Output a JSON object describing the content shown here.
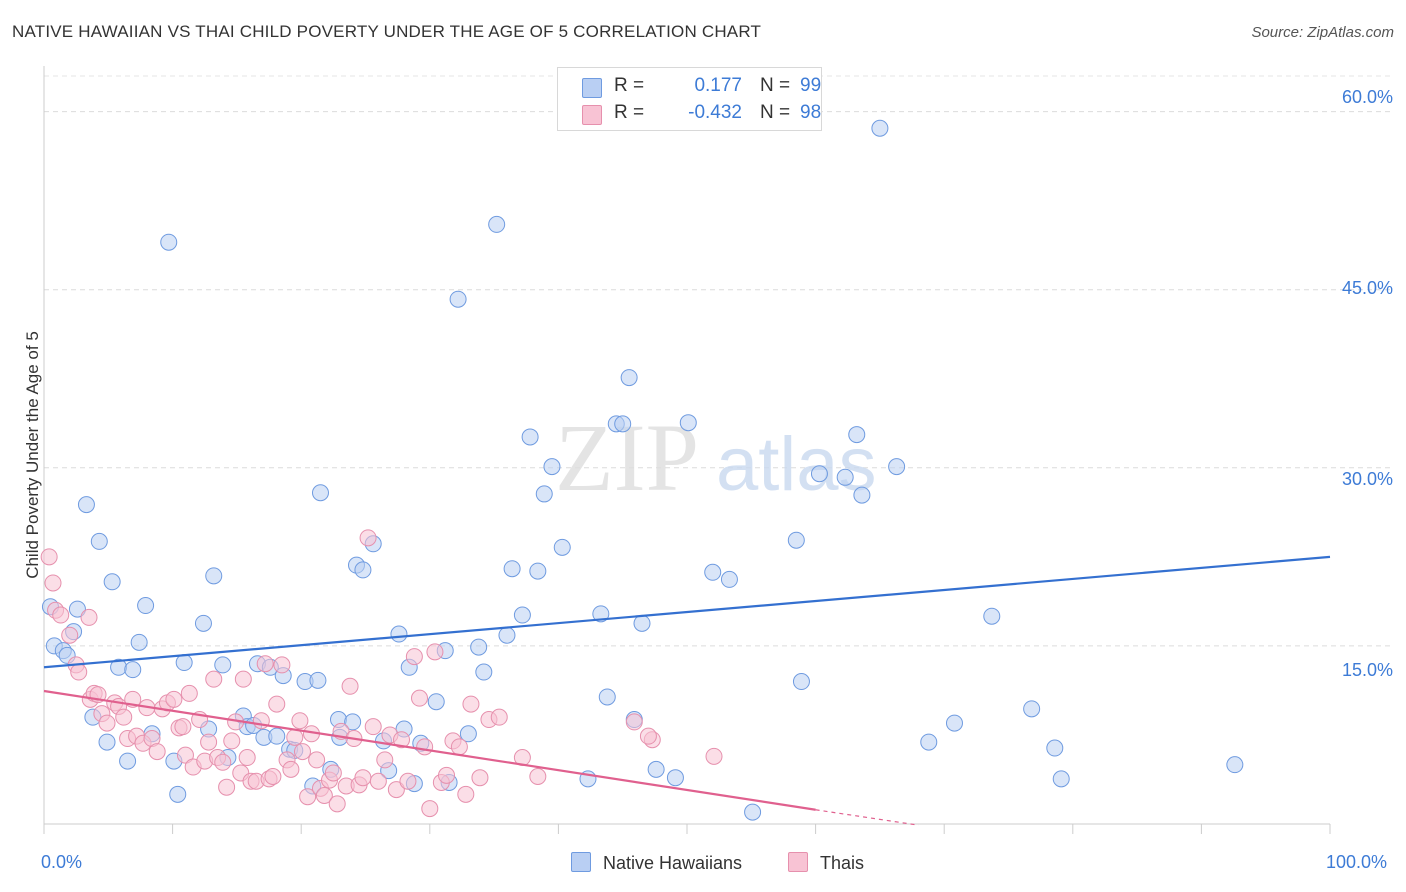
{
  "header": {
    "title": "NATIVE HAWAIIAN VS THAI CHILD POVERTY UNDER THE AGE OF 5 CORRELATION CHART",
    "source": "Source: ZipAtlas.com"
  },
  "watermark": {
    "zip": "ZIP",
    "atlas": "atlas"
  },
  "legend": {
    "rows": [
      {
        "r_label": "R =",
        "r_value": "0.177",
        "n_label": "N =",
        "n_value": "99"
      },
      {
        "r_label": "R =",
        "r_value": "-0.432",
        "n_label": "N =",
        "n_value": "98"
      }
    ]
  },
  "bottom_legend": {
    "series1": "Native Hawaiians",
    "series2": "Thais"
  },
  "colors": {
    "blue_fill": "#b9cff3",
    "blue_stroke": "#6f9be0",
    "blue_line": "#3470d0",
    "pink_fill": "#f8c3d4",
    "pink_stroke": "#e690ad",
    "pink_line": "#e0608e",
    "tick_text": "#3d7bd6"
  },
  "chart_data": {
    "type": "scatter",
    "title": "NATIVE HAWAIIAN VS THAI CHILD POVERTY UNDER THE AGE OF 5 CORRELATION CHART",
    "xlabel": "",
    "ylabel": "Child Poverty Under the Age of 5",
    "xlim": [
      0,
      100
    ],
    "ylim": [
      0,
      63
    ],
    "y_ticks": [
      15,
      30,
      45,
      60
    ],
    "y_tick_labels": [
      "15.0%",
      "30.0%",
      "45.0%",
      "60.0%"
    ],
    "x_tick_labels": [
      "0.0%",
      "100.0%"
    ],
    "series": [
      {
        "name": "Native Hawaiians",
        "r": 0.177,
        "n": 99,
        "trend": {
          "x": [
            0,
            100
          ],
          "y": [
            13.2,
            22.5
          ]
        },
        "points": [
          [
            0.5,
            18.3
          ],
          [
            0.8,
            15.0
          ],
          [
            1.5,
            14.6
          ],
          [
            1.8,
            14.2
          ],
          [
            2.3,
            16.2
          ],
          [
            2.6,
            18.1
          ],
          [
            3.3,
            26.9
          ],
          [
            3.8,
            9.0
          ],
          [
            4.3,
            23.8
          ],
          [
            4.9,
            6.9
          ],
          [
            5.3,
            20.4
          ],
          [
            5.8,
            13.2
          ],
          [
            6.5,
            5.3
          ],
          [
            6.9,
            13.0
          ],
          [
            7.4,
            15.3
          ],
          [
            7.9,
            18.4
          ],
          [
            8.4,
            7.6
          ],
          [
            9.7,
            49.0
          ],
          [
            10.1,
            5.3
          ],
          [
            10.4,
            2.5
          ],
          [
            10.9,
            13.6
          ],
          [
            12.4,
            16.9
          ],
          [
            12.8,
            8.0
          ],
          [
            13.2,
            20.9
          ],
          [
            13.9,
            13.4
          ],
          [
            14.3,
            5.6
          ],
          [
            15.5,
            9.1
          ],
          [
            15.8,
            8.2
          ],
          [
            16.3,
            8.3
          ],
          [
            16.6,
            13.5
          ],
          [
            17.1,
            7.3
          ],
          [
            17.6,
            13.2
          ],
          [
            18.1,
            7.4
          ],
          [
            18.6,
            12.5
          ],
          [
            19.1,
            6.3
          ],
          [
            19.5,
            6.2
          ],
          [
            20.3,
            12.0
          ],
          [
            20.9,
            3.2
          ],
          [
            21.3,
            12.1
          ],
          [
            21.5,
            27.9
          ],
          [
            22.3,
            4.6
          ],
          [
            22.9,
            8.8
          ],
          [
            23.0,
            7.3
          ],
          [
            24.0,
            8.6
          ],
          [
            24.3,
            21.8
          ],
          [
            24.8,
            21.4
          ],
          [
            25.6,
            23.6
          ],
          [
            26.4,
            7.0
          ],
          [
            26.8,
            4.5
          ],
          [
            27.6,
            16.0
          ],
          [
            28.0,
            8.0
          ],
          [
            28.4,
            13.2
          ],
          [
            28.8,
            3.4
          ],
          [
            29.3,
            6.8
          ],
          [
            30.5,
            10.3
          ],
          [
            31.2,
            14.6
          ],
          [
            31.5,
            3.5
          ],
          [
            32.2,
            44.2
          ],
          [
            33.0,
            7.6
          ],
          [
            33.8,
            14.9
          ],
          [
            34.2,
            12.8
          ],
          [
            35.2,
            50.5
          ],
          [
            36.0,
            15.9
          ],
          [
            36.4,
            21.5
          ],
          [
            37.2,
            17.6
          ],
          [
            37.8,
            32.6
          ],
          [
            38.4,
            21.3
          ],
          [
            38.9,
            27.8
          ],
          [
            39.5,
            30.1
          ],
          [
            40.3,
            23.3
          ],
          [
            42.3,
            3.8
          ],
          [
            43.3,
            17.7
          ],
          [
            43.8,
            10.7
          ],
          [
            44.5,
            33.7
          ],
          [
            45.0,
            33.7
          ],
          [
            45.5,
            37.6
          ],
          [
            45.9,
            8.8
          ],
          [
            46.5,
            16.9
          ],
          [
            47.6,
            4.6
          ],
          [
            49.1,
            3.9
          ],
          [
            50.1,
            33.8
          ],
          [
            52.0,
            21.2
          ],
          [
            53.3,
            20.6
          ],
          [
            58.5,
            23.9
          ],
          [
            58.9,
            12.0
          ],
          [
            60.3,
            29.5
          ],
          [
            62.3,
            29.2
          ],
          [
            63.2,
            32.8
          ],
          [
            63.6,
            27.7
          ],
          [
            65.0,
            58.6
          ],
          [
            66.3,
            30.1
          ],
          [
            68.8,
            6.9
          ],
          [
            70.8,
            8.5
          ],
          [
            73.7,
            17.5
          ],
          [
            76.8,
            9.7
          ],
          [
            78.6,
            6.4
          ],
          [
            79.1,
            3.8
          ],
          [
            92.6,
            5.0
          ],
          [
            55.1,
            1.0
          ]
        ]
      },
      {
        "name": "Thais",
        "r": -0.432,
        "n": 98,
        "trend": {
          "x": [
            0,
            60
          ],
          "y": [
            11.2,
            1.2
          ]
        },
        "trend_dashed": {
          "x": [
            60,
            68
          ],
          "y": [
            1.2,
            -0.1
          ]
        },
        "points": [
          [
            0.4,
            22.5
          ],
          [
            0.7,
            20.3
          ],
          [
            0.9,
            18.0
          ],
          [
            1.3,
            17.6
          ],
          [
            2.0,
            15.9
          ],
          [
            2.5,
            13.4
          ],
          [
            2.7,
            12.8
          ],
          [
            3.5,
            17.4
          ],
          [
            3.6,
            10.5
          ],
          [
            3.9,
            11.0
          ],
          [
            4.2,
            10.9
          ],
          [
            4.5,
            9.3
          ],
          [
            4.9,
            8.5
          ],
          [
            5.5,
            10.2
          ],
          [
            5.8,
            9.9
          ],
          [
            6.2,
            9.0
          ],
          [
            6.5,
            7.2
          ],
          [
            6.9,
            10.5
          ],
          [
            7.2,
            7.4
          ],
          [
            7.7,
            6.8
          ],
          [
            8.0,
            9.8
          ],
          [
            8.4,
            7.2
          ],
          [
            8.8,
            6.1
          ],
          [
            9.2,
            9.7
          ],
          [
            9.6,
            10.2
          ],
          [
            10.1,
            10.5
          ],
          [
            10.5,
            8.1
          ],
          [
            10.8,
            8.2
          ],
          [
            11.0,
            5.8
          ],
          [
            11.3,
            11.0
          ],
          [
            11.6,
            4.8
          ],
          [
            12.1,
            8.8
          ],
          [
            12.5,
            5.3
          ],
          [
            12.8,
            6.9
          ],
          [
            13.2,
            12.2
          ],
          [
            13.5,
            5.6
          ],
          [
            13.9,
            5.2
          ],
          [
            14.2,
            3.1
          ],
          [
            14.6,
            7.0
          ],
          [
            14.9,
            8.6
          ],
          [
            15.3,
            4.3
          ],
          [
            15.5,
            12.2
          ],
          [
            15.8,
            5.6
          ],
          [
            16.1,
            3.6
          ],
          [
            16.5,
            3.6
          ],
          [
            16.9,
            8.7
          ],
          [
            17.2,
            13.5
          ],
          [
            17.5,
            3.8
          ],
          [
            17.8,
            4.0
          ],
          [
            18.1,
            10.1
          ],
          [
            18.5,
            13.4
          ],
          [
            18.9,
            5.4
          ],
          [
            19.2,
            4.6
          ],
          [
            19.5,
            7.3
          ],
          [
            19.9,
            8.7
          ],
          [
            20.1,
            6.1
          ],
          [
            20.5,
            2.3
          ],
          [
            20.8,
            7.6
          ],
          [
            21.2,
            5.4
          ],
          [
            21.5,
            3.0
          ],
          [
            21.8,
            2.4
          ],
          [
            22.2,
            3.7
          ],
          [
            22.5,
            4.3
          ],
          [
            22.8,
            1.7
          ],
          [
            23.1,
            7.8
          ],
          [
            23.5,
            3.2
          ],
          [
            23.8,
            11.6
          ],
          [
            24.1,
            7.2
          ],
          [
            24.5,
            3.3
          ],
          [
            24.8,
            3.9
          ],
          [
            25.2,
            24.1
          ],
          [
            25.6,
            8.2
          ],
          [
            26.0,
            3.6
          ],
          [
            26.5,
            5.4
          ],
          [
            26.9,
            7.5
          ],
          [
            27.4,
            2.9
          ],
          [
            27.8,
            7.1
          ],
          [
            28.3,
            3.6
          ],
          [
            28.8,
            14.1
          ],
          [
            29.2,
            10.6
          ],
          [
            29.6,
            6.5
          ],
          [
            30.0,
            1.3
          ],
          [
            30.4,
            14.5
          ],
          [
            30.9,
            3.5
          ],
          [
            31.3,
            4.1
          ],
          [
            31.8,
            7.0
          ],
          [
            32.3,
            6.5
          ],
          [
            32.8,
            2.5
          ],
          [
            33.2,
            10.1
          ],
          [
            33.9,
            3.9
          ],
          [
            34.6,
            8.8
          ],
          [
            35.4,
            9.0
          ],
          [
            37.2,
            5.6
          ],
          [
            38.4,
            4.0
          ],
          [
            45.9,
            8.6
          ],
          [
            47.3,
            7.1
          ],
          [
            52.1,
            5.7
          ],
          [
            47.0,
            7.4
          ]
        ]
      }
    ]
  }
}
